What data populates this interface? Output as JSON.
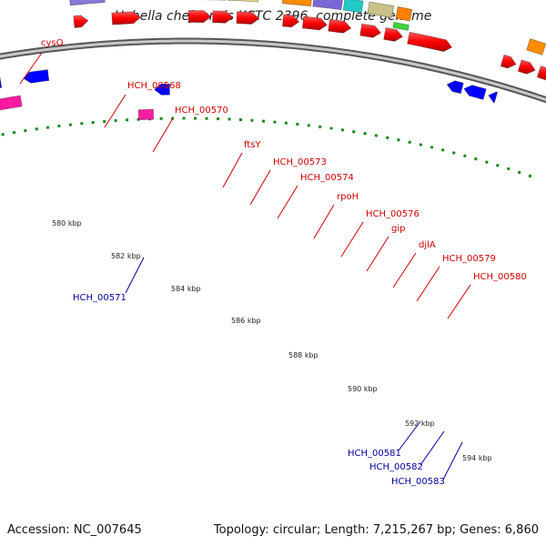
{
  "title": "Hahella chejuensis KCTC 2396, complete genome",
  "footer": {
    "accession": "Accession: NC_007645",
    "summary": "Topology: circular; Length: 7,215,267 bp; Genes: 6,860"
  },
  "ticks": [
    "580 kbp",
    "582 kbp",
    "584 kbp",
    "586 kbp",
    "588 kbp",
    "590 kbp",
    "592 kbp",
    "594 kbp"
  ],
  "forward_labels": [
    "cysQ",
    "HCH_00568",
    "HCH_00570",
    "ftsY",
    "HCH_00573",
    "HCH_00574",
    "rpoH",
    "HCH_00576",
    "gip",
    "djlA",
    "HCH_00579",
    "HCH_00580"
  ],
  "reverse_labels": [
    "HCH_00571",
    "HCH_00581",
    "HCH_00582",
    "HCH_00583"
  ],
  "colors": {
    "cds_forward": "#ff0000",
    "cds_reverse": "#0000ff",
    "backbone": "#888888",
    "gc_dots": "#1a8a1a",
    "label_forward": "#cc0000",
    "label_reverse": "#000099"
  }
}
